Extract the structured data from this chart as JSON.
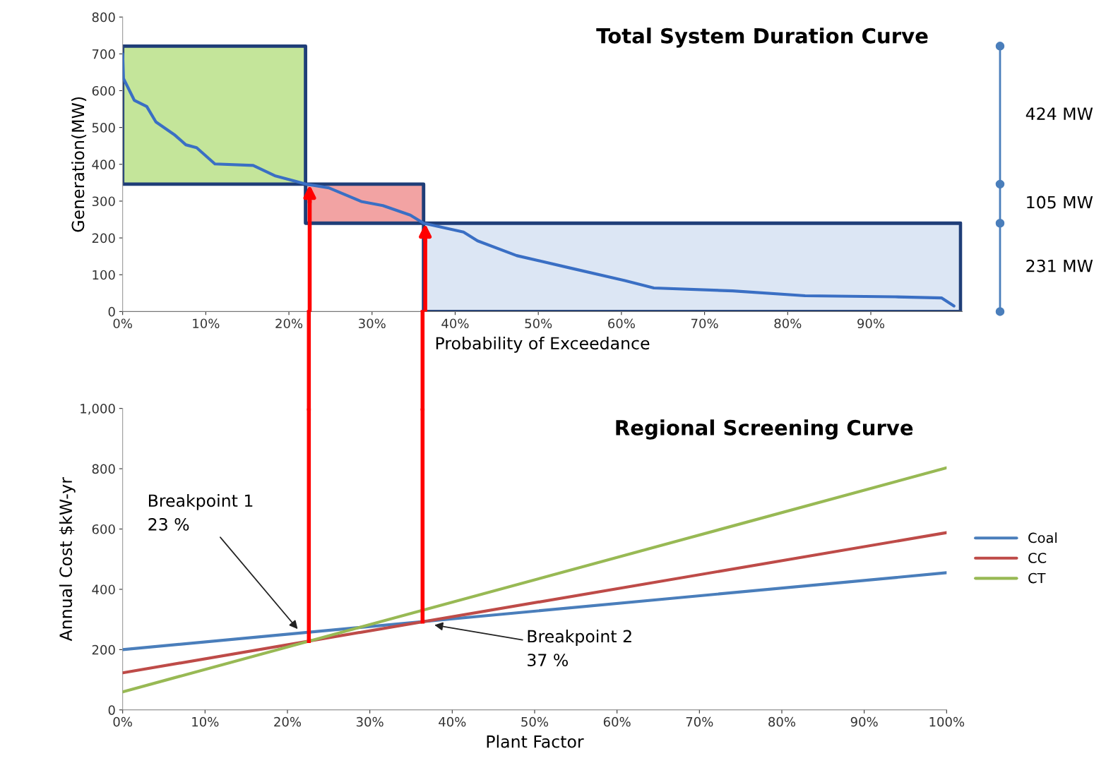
{
  "chart_data": [
    {
      "type": "line",
      "title": "Total System Duration Curve",
      "xlabel": "Probability of Exceedance",
      "ylabel": "Generation(MW)",
      "xlim": [
        0,
        101
      ],
      "ylim": [
        0,
        800
      ],
      "xticks": [
        {
          "value": 0,
          "label": "0%"
        },
        {
          "value": 10,
          "label": "10%"
        },
        {
          "value": 20,
          "label": "20%"
        },
        {
          "value": 30,
          "label": "30%"
        },
        {
          "value": 40,
          "label": "40%"
        },
        {
          "value": 50,
          "label": "50%"
        },
        {
          "value": 60,
          "label": "60%"
        },
        {
          "value": 70,
          "label": "70%"
        },
        {
          "value": 80,
          "label": "80%"
        },
        {
          "value": 90,
          "label": "90%"
        }
      ],
      "yticks": [
        0,
        100,
        200,
        300,
        400,
        500,
        600,
        700,
        800
      ],
      "grid": false,
      "legend": false,
      "series": [
        {
          "type": "area",
          "color": "#c4e59a",
          "x": [
            0,
            22,
            22,
            0
          ],
          "values": [
            721,
            721,
            346,
            346
          ]
        },
        {
          "type": "area",
          "color": "#f2a3a3",
          "x": [
            22,
            36.2,
            36.2,
            22
          ],
          "values": [
            346,
            346,
            240,
            240
          ]
        },
        {
          "type": "area",
          "color": "#dce6f4",
          "x": [
            36.2,
            100.8,
            100.8,
            36.2
          ],
          "values": [
            240,
            240,
            0,
            0
          ]
        },
        {
          "type": "line",
          "color": "#3a6fc4",
          "x": [
            0,
            0.1,
            1.4,
            2.9,
            4.0,
            6.3,
            7.6,
            8.9,
            11.1,
            15.7,
            18.3,
            22.1,
            24.8,
            28.7,
            31.3,
            34.6,
            36.2,
            41.0,
            42.7,
            47.4,
            53.9,
            60.4,
            63.9,
            73.4,
            82.1,
            92.9,
            98.5,
            100
          ],
          "values": [
            700,
            633,
            574,
            557,
            515,
            479,
            453,
            445,
            401,
            397,
            369,
            346,
            336,
            299,
            288,
            262,
            240,
            216,
            192,
            152,
            118,
            84,
            64,
            56,
            43,
            40,
            37,
            15
          ]
        }
      ],
      "ref_lines": [
        {
          "axis": "x",
          "value": 22.5,
          "color": "#ff0000"
        },
        {
          "axis": "x",
          "value": 36.4,
          "color": "#ff0000"
        }
      ],
      "annotations": [
        "424 MW",
        "105 MW",
        "231 MW"
      ]
    },
    {
      "type": "line",
      "title": "Regional Screening Curve",
      "xlabel": "Plant Factor",
      "ylabel": "Annual Cost $kW-yr",
      "x": [
        0,
        100
      ],
      "xlim": [
        0,
        100
      ],
      "ylim": [
        0,
        1000
      ],
      "xticks": [
        {
          "value": 0,
          "label": "0%"
        },
        {
          "value": 10,
          "label": "10%"
        },
        {
          "value": 20,
          "label": "20%"
        },
        {
          "value": 30,
          "label": "30%"
        },
        {
          "value": 40,
          "label": "40%"
        },
        {
          "value": 50,
          "label": "50%"
        },
        {
          "value": 60,
          "label": "60%"
        },
        {
          "value": 70,
          "label": "70%"
        },
        {
          "value": 80,
          "label": "80%"
        },
        {
          "value": 90,
          "label": "90%"
        },
        {
          "value": 100,
          "label": "100%"
        }
      ],
      "yticks": [
        0,
        200,
        400,
        600,
        800,
        {
          "value": 1000,
          "label": "1,000"
        }
      ],
      "grid": false,
      "legend": "right",
      "series": [
        {
          "name": "Coal",
          "color": "#4a7ebb",
          "values": [
            200,
            455
          ]
        },
        {
          "name": "CC",
          "color": "#be4b48",
          "values": [
            123,
            588
          ]
        },
        {
          "name": "CT",
          "color": "#98b954",
          "values": [
            60,
            803
          ]
        }
      ],
      "ref_lines": [
        {
          "axis": "x",
          "value": 22.6,
          "color": "#ff0000"
        },
        {
          "axis": "x",
          "value": 36.4,
          "color": "#ff0000"
        }
      ],
      "annotations": [
        "Breakpoint 1\n23 %",
        "Breakpoint 2\n37 %"
      ]
    }
  ]
}
